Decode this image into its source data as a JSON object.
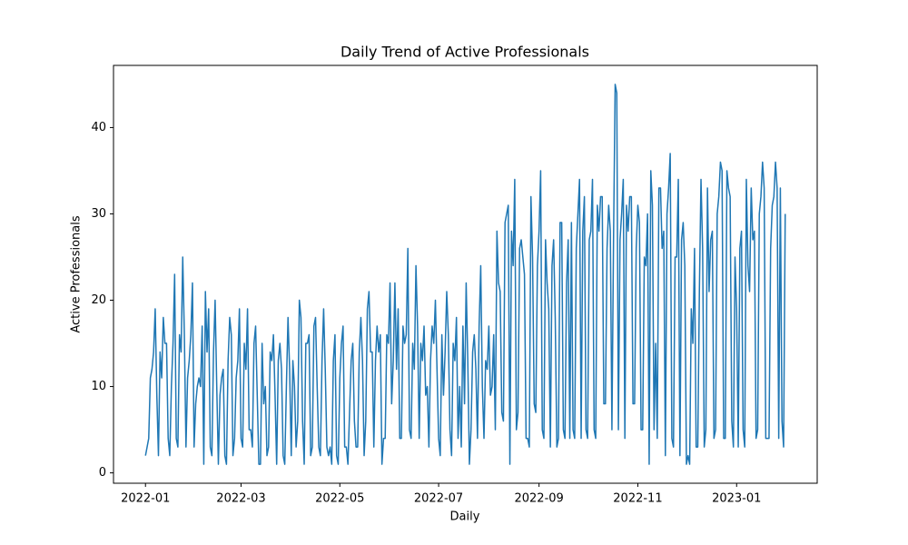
{
  "chart_data": {
    "type": "line",
    "title": "Daily Trend of Active Professionals",
    "xlabel": "Daily",
    "ylabel": "Active Professionals",
    "color": "#1f77b4",
    "x": [
      0,
      1,
      2,
      3,
      4,
      5,
      6,
      7,
      8,
      9,
      10,
      11,
      12,
      13,
      14,
      15,
      16,
      17,
      18,
      19,
      20,
      21,
      22,
      23,
      24,
      25,
      26,
      27,
      28,
      29,
      30,
      31,
      32,
      33,
      34,
      35,
      36,
      37,
      38,
      39,
      40,
      41,
      42,
      43,
      44,
      45,
      46,
      47,
      48,
      49,
      50,
      51,
      52,
      53,
      54,
      55,
      56,
      57,
      58,
      59,
      60,
      61,
      62,
      63,
      64,
      65,
      66,
      67,
      68,
      69,
      70,
      71,
      72,
      73,
      74,
      75,
      76,
      77,
      78,
      79,
      80,
      81,
      82,
      83,
      84,
      85,
      86,
      87,
      88,
      89,
      90,
      91,
      92,
      93,
      94,
      95,
      96,
      97,
      98,
      99,
      100,
      101,
      102,
      103,
      104,
      105,
      106,
      107,
      108,
      109,
      110,
      111,
      112,
      113,
      114,
      115,
      116,
      117,
      118,
      119,
      120,
      121,
      122,
      123,
      124,
      125,
      126,
      127,
      128,
      129,
      130,
      131,
      132,
      133,
      134,
      135,
      136,
      137,
      138,
      139,
      140,
      141,
      142,
      143,
      144,
      145,
      146,
      147,
      148,
      149,
      150,
      151,
      152,
      153,
      154,
      155,
      156,
      157,
      158,
      159,
      160,
      161,
      162,
      163,
      164,
      165,
      166,
      167,
      168,
      169,
      170,
      171,
      172,
      173,
      174,
      175,
      176,
      177,
      178,
      179,
      180,
      181,
      182,
      183,
      184,
      185,
      186,
      187,
      188,
      189,
      190,
      191,
      192,
      193,
      194,
      195,
      196,
      197,
      198,
      199,
      200,
      201,
      202,
      203,
      204,
      205,
      206,
      207,
      208,
      209,
      210,
      211,
      212,
      213,
      214,
      215,
      216,
      217,
      218,
      219,
      220,
      221,
      222,
      223,
      224,
      225,
      226,
      227,
      228,
      229,
      230,
      231,
      232,
      233,
      234,
      235,
      236,
      237,
      238,
      239,
      240,
      241,
      242,
      243,
      244,
      245,
      246,
      247,
      248,
      249,
      250,
      251,
      252,
      253,
      254,
      255,
      256,
      257,
      258,
      259,
      260,
      261,
      262,
      263,
      264,
      265,
      266,
      267,
      268,
      269,
      270,
      271,
      272,
      273,
      274,
      275,
      276,
      277,
      278,
      279,
      280,
      281,
      282,
      283,
      284,
      285,
      286,
      287,
      288,
      289,
      290,
      291,
      292,
      293,
      294,
      295,
      296,
      297,
      298,
      299,
      300,
      301,
      302,
      303,
      304,
      305,
      306,
      307,
      308,
      309,
      310,
      311,
      312,
      313,
      314,
      315,
      316,
      317,
      318,
      319,
      320,
      321,
      322,
      323,
      324,
      325,
      326,
      327,
      328,
      329,
      330,
      331,
      332,
      333,
      334,
      335,
      336,
      337,
      338,
      339,
      340,
      341,
      342,
      343,
      344,
      345,
      346,
      347,
      348,
      349,
      350,
      351,
      352,
      353,
      354,
      355,
      356,
      357,
      358,
      359,
      360,
      361,
      362,
      363,
      364,
      365,
      366,
      367,
      368,
      369,
      370,
      371,
      372,
      373,
      374,
      375,
      376,
      377,
      378,
      379,
      380,
      381,
      382,
      383,
      384,
      385,
      386,
      387,
      388,
      389,
      390,
      391,
      392,
      393,
      394,
      395
    ],
    "values": [
      2,
      3,
      4,
      11,
      12,
      14,
      19,
      9,
      2,
      14,
      11,
      18,
      15,
      15,
      4,
      2,
      10,
      15,
      23,
      4,
      3,
      16,
      14,
      25,
      16,
      3,
      11,
      13,
      16,
      22,
      3,
      8,
      10,
      11,
      10,
      17,
      1,
      21,
      14,
      19,
      3,
      2,
      14,
      20,
      10,
      1,
      9,
      11,
      12,
      2,
      1,
      13,
      18,
      16,
      2,
      4,
      11,
      13,
      19,
      4,
      3,
      15,
      12,
      19,
      5,
      5,
      3,
      15,
      17,
      9,
      1,
      1,
      15,
      8,
      10,
      2,
      3,
      14,
      13,
      16,
      9,
      1,
      13,
      15,
      12,
      2,
      1,
      10,
      18,
      12,
      2,
      13,
      10,
      3,
      6,
      20,
      18,
      6,
      1,
      15,
      15,
      16,
      2,
      3,
      17,
      18,
      10,
      3,
      2,
      13,
      19,
      12,
      3,
      2,
      3,
      1,
      13,
      16,
      2,
      1,
      11,
      15,
      17,
      3,
      3,
      1,
      7,
      13,
      15,
      6,
      3,
      3,
      14,
      18,
      13,
      2,
      6,
      19,
      21,
      14,
      14,
      3,
      13,
      17,
      14,
      16,
      1,
      4,
      4,
      16,
      15,
      22,
      8,
      13,
      22,
      12,
      19,
      4,
      4,
      17,
      15,
      16,
      26,
      5,
      4,
      15,
      12,
      24,
      17,
      4,
      15,
      13,
      17,
      9,
      10,
      3,
      13,
      17,
      15,
      20,
      12,
      4,
      2,
      16,
      9,
      14,
      21,
      16,
      5,
      2,
      15,
      13,
      18,
      4,
      10,
      3,
      17,
      8,
      22,
      13,
      1,
      5,
      14,
      16,
      12,
      4,
      17,
      24,
      10,
      4,
      13,
      12,
      17,
      9,
      10,
      16,
      5,
      28,
      22,
      21,
      7,
      6,
      29,
      30,
      31,
      1,
      28,
      24,
      34,
      5,
      7,
      26,
      27,
      25,
      23,
      4,
      4,
      3,
      32,
      25,
      8,
      7,
      24,
      28,
      35,
      5,
      4,
      27,
      22,
      19,
      3,
      24,
      27,
      18,
      3,
      4,
      29,
      29,
      5,
      4,
      22,
      27,
      4,
      29,
      5,
      4,
      26,
      30,
      34,
      4,
      28,
      32,
      5,
      4,
      27,
      28,
      34,
      5,
      4,
      31,
      28,
      32,
      32,
      8,
      8,
      26,
      31,
      28,
      5,
      27,
      45,
      44,
      5,
      27,
      30,
      34,
      4,
      31,
      28,
      32,
      32,
      8,
      8,
      26,
      31,
      29,
      5,
      5,
      25,
      24,
      30,
      1,
      35,
      31,
      5,
      15,
      4,
      33,
      33,
      26,
      28,
      2,
      30,
      33,
      37,
      4,
      3,
      25,
      25,
      34,
      2,
      27,
      29,
      24,
      1,
      2,
      1,
      19,
      15,
      26,
      3,
      3,
      21,
      34,
      26,
      3,
      5,
      33,
      21,
      27,
      28,
      4,
      5,
      30,
      32,
      36,
      35,
      4,
      4,
      35,
      33,
      32,
      6,
      3,
      25,
      19,
      3,
      26,
      28,
      5,
      3,
      34,
      24,
      21,
      33,
      27,
      28,
      4,
      5,
      30,
      32,
      36,
      33,
      4,
      4,
      4,
      26,
      31,
      32,
      36,
      33,
      4,
      33,
      6,
      3,
      30
    ],
    "xlim": [
      -19.75,
      414.75
    ],
    "xticks": [
      {
        "value": 0,
        "label": "2022-01"
      },
      {
        "value": 59,
        "label": "2022-03"
      },
      {
        "value": 120,
        "label": "2022-05"
      },
      {
        "value": 181,
        "label": "2022-07"
      },
      {
        "value": 243,
        "label": "2022-09"
      },
      {
        "value": 304,
        "label": "2022-11"
      },
      {
        "value": 365,
        "label": "2023-01"
      }
    ],
    "ylim": [
      -1.2,
      47.2
    ],
    "yticks": [
      0,
      10,
      20,
      30,
      40
    ],
    "grid": false
  }
}
